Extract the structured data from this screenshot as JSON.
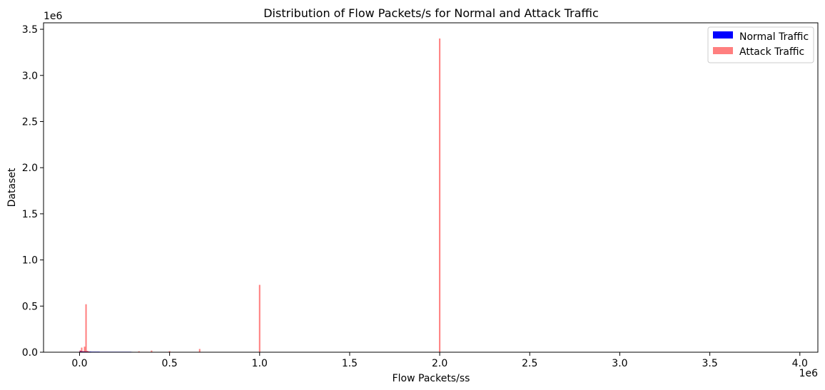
{
  "chart_data": {
    "type": "bar",
    "title": "Distribution of Flow Packets/s for Normal and Attack Traffic",
    "xlabel": "Flow Packets/ss",
    "ylabel": "Dataset",
    "x_offset_text": "1e6",
    "y_offset_text": "1e6",
    "xlim": [
      -0.2,
      4.1
    ],
    "ylim": [
      0,
      3.57
    ],
    "xticks": [
      0.0,
      0.5,
      1.0,
      1.5,
      2.0,
      2.5,
      3.0,
      3.5,
      4.0
    ],
    "xtick_labels": [
      "0.0",
      "0.5",
      "1.0",
      "1.5",
      "2.0",
      "2.5",
      "3.0",
      "3.5",
      "4.0"
    ],
    "yticks": [
      0.0,
      0.5,
      1.0,
      1.5,
      2.0,
      2.5,
      3.0,
      3.5
    ],
    "ytick_labels": [
      "0.0",
      "0.5",
      "1.0",
      "1.5",
      "2.0",
      "2.5",
      "3.0",
      "3.5"
    ],
    "legend_position": "top-right",
    "grid": false,
    "series": [
      {
        "name": "Normal Traffic",
        "color": "#0000ff",
        "alpha": 1.0,
        "bar_width": 0.008,
        "x": [
          0.004,
          0.012,
          0.02,
          0.028,
          0.036,
          0.044,
          0.052,
          0.06,
          0.068,
          0.076,
          0.084,
          0.092,
          0.1,
          0.108,
          0.116,
          0.124,
          0.132,
          0.14,
          0.148,
          0.156,
          0.164,
          0.172,
          0.18,
          0.188,
          0.196,
          0.204,
          0.212,
          0.22,
          0.228,
          0.236,
          0.244,
          0.252,
          0.26,
          0.268,
          0.276,
          0.284,
          0.292
        ],
        "values": [
          0.012,
          0.01,
          0.009,
          0.008,
          0.008,
          0.007,
          0.007,
          0.007,
          0.006,
          0.006,
          0.006,
          0.006,
          0.006,
          0.006,
          0.005,
          0.005,
          0.005,
          0.005,
          0.005,
          0.005,
          0.005,
          0.005,
          0.005,
          0.005,
          0.005,
          0.005,
          0.005,
          0.005,
          0.005,
          0.005,
          0.005,
          0.005,
          0.005,
          0.005,
          0.005,
          0.005,
          0.004
        ]
      },
      {
        "name": "Attack Traffic",
        "color": "#ff0000",
        "alpha": 0.5,
        "bar_width": 0.008,
        "x": [
          0.004,
          0.012,
          0.02,
          0.028,
          0.036,
          0.044,
          0.052,
          0.33,
          0.4,
          0.5,
          0.667,
          1.0,
          2.0
        ],
        "values": [
          0.02,
          0.05,
          0.01,
          0.06,
          0.52,
          0.015,
          0.008,
          0.01,
          0.018,
          0.012,
          0.035,
          0.73,
          3.4
        ]
      }
    ]
  }
}
